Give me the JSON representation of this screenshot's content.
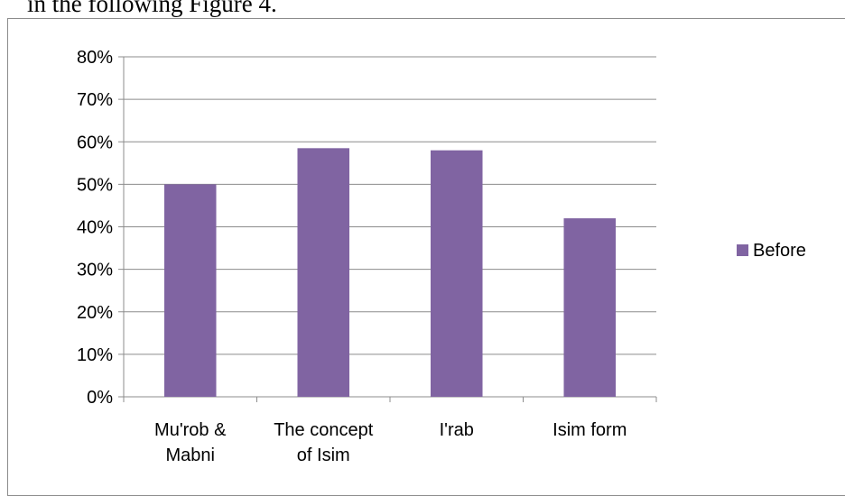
{
  "page": {
    "caption_fragment": "in the following Figure 4."
  },
  "chart_data": {
    "type": "bar",
    "categories": [
      [
        "Mu'rob &",
        "Mabni"
      ],
      [
        "The concept",
        "of Isim"
      ],
      [
        "I'rab"
      ],
      [
        "Isim form"
      ]
    ],
    "series": [
      {
        "name": "Before",
        "color": "#8064a2",
        "values": [
          50,
          58.5,
          58,
          42
        ]
      }
    ],
    "yticks": [
      "0%",
      "10%",
      "20%",
      "30%",
      "40%",
      "50%",
      "60%",
      "70%",
      "80%"
    ],
    "ylim": [
      0,
      80
    ],
    "grid": true,
    "legend": "right"
  }
}
